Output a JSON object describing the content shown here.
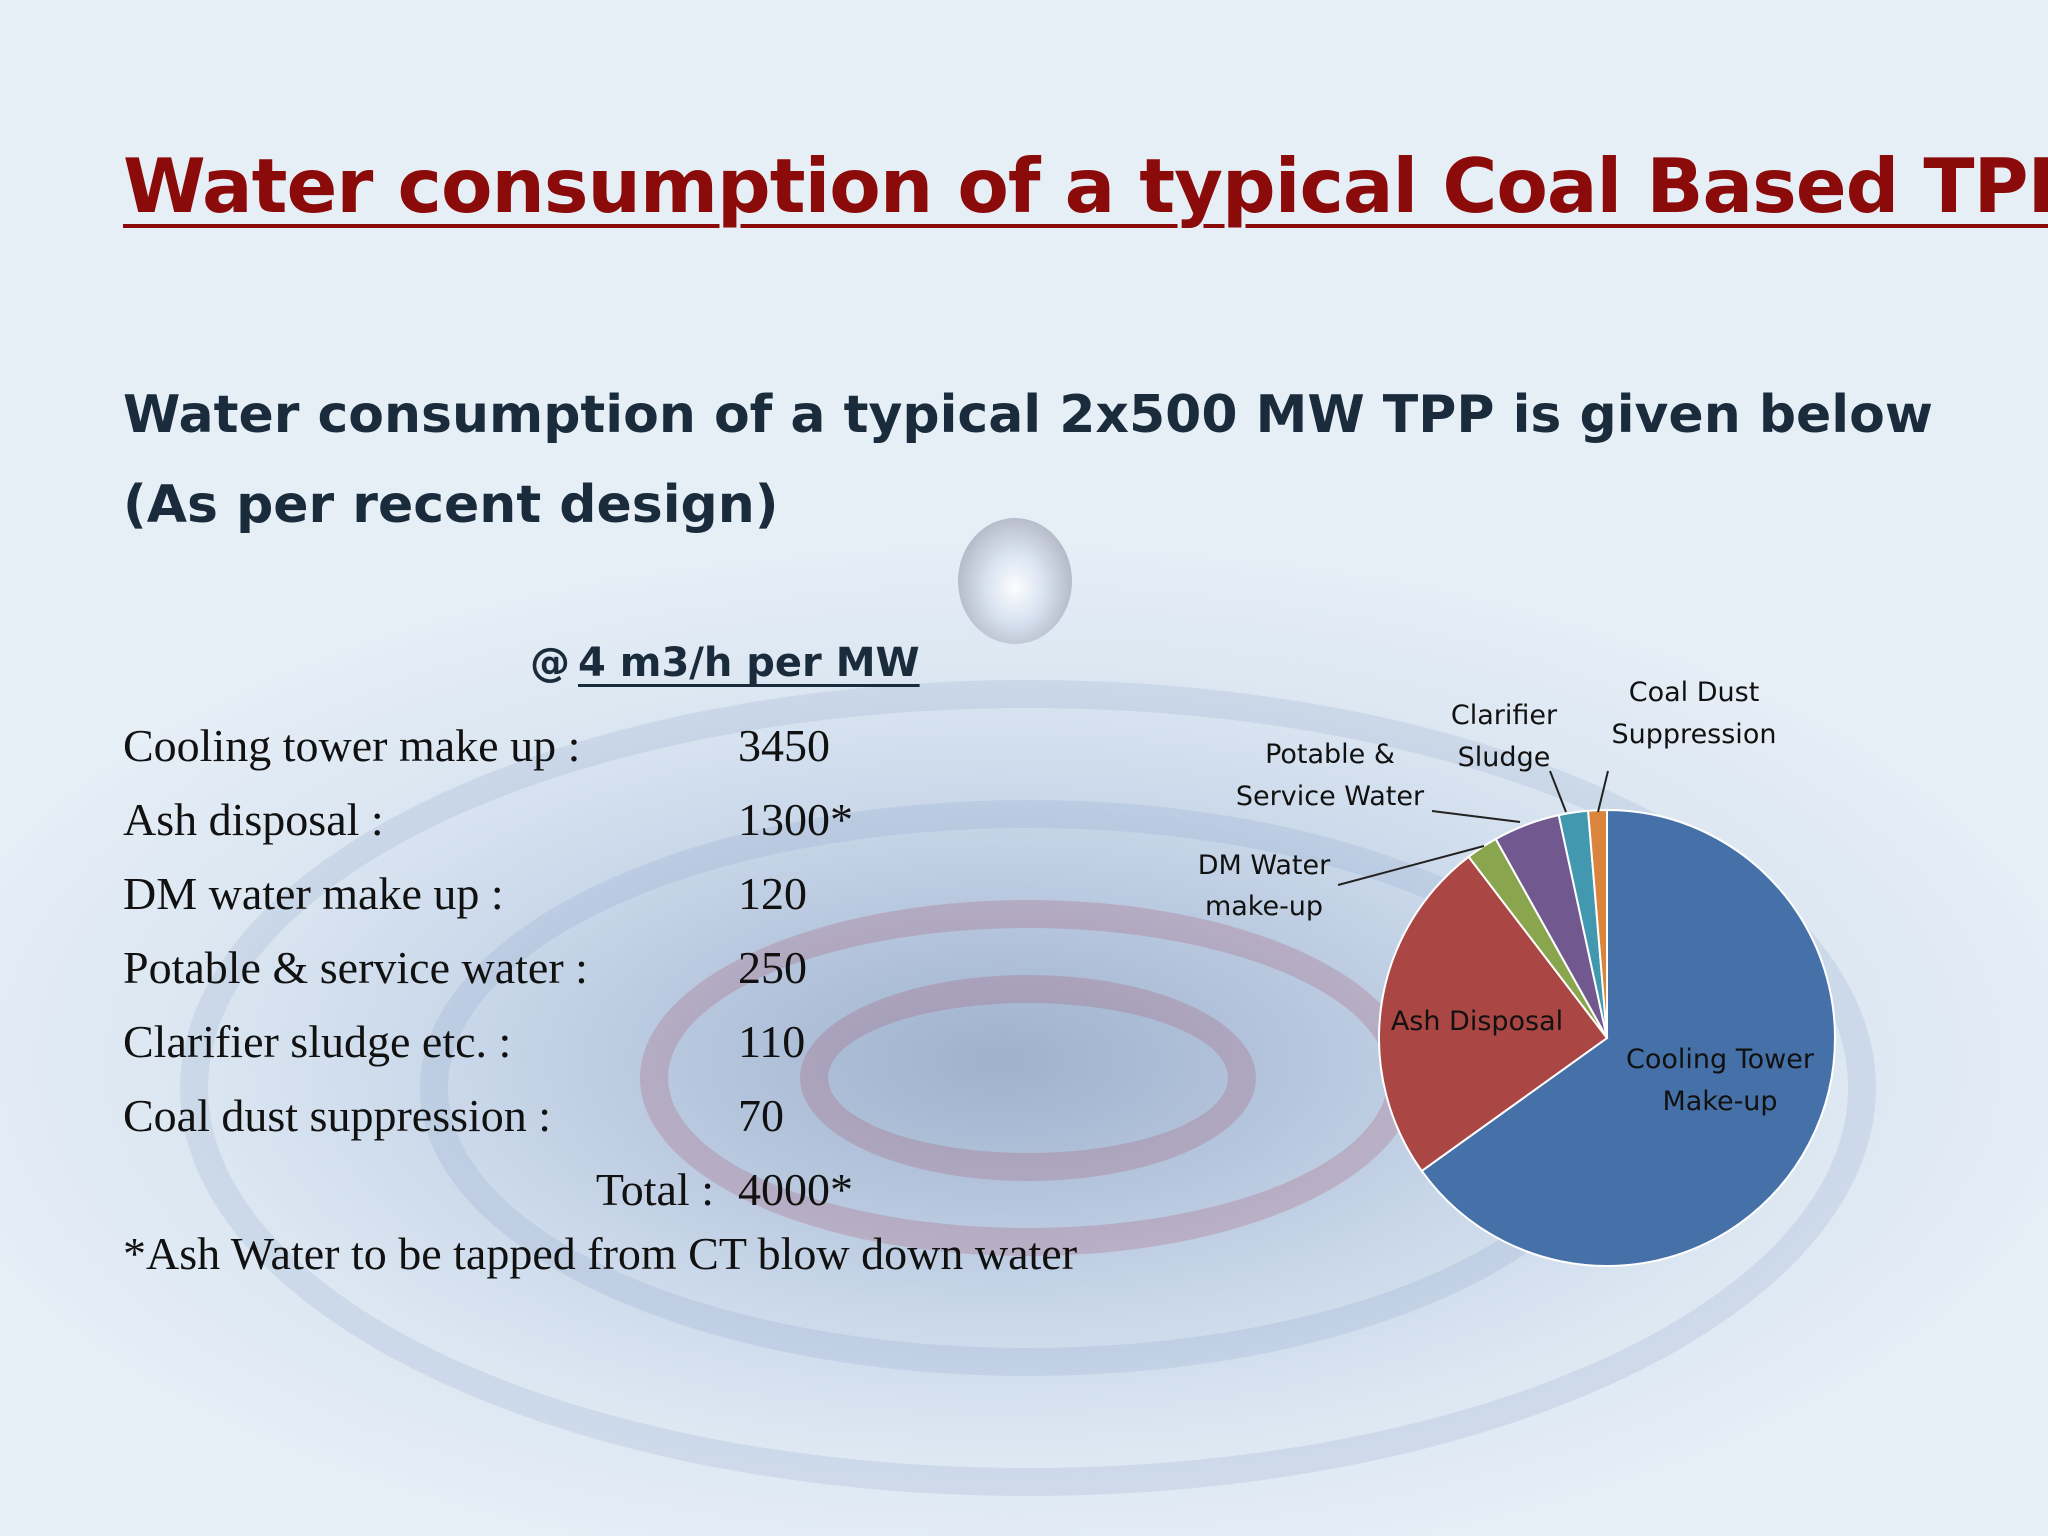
{
  "slide": {
    "title": "Water consumption of a typical Coal Based TPP",
    "subtitle": "Water consumption of a typical 2x500 MW TPP is given below (As per recent design)"
  },
  "table": {
    "header_prefix": "@",
    "header_value": "4 m3/h per MW",
    "rows": [
      {
        "label": "Cooling tower make up :",
        "value": "3450"
      },
      {
        "label": "Ash disposal :",
        "value": "1300*"
      },
      {
        "label": "DM water make up :",
        "value": "120"
      },
      {
        "label": "Potable & service water :",
        "value": "250"
      },
      {
        "label": "Clarifier sludge etc. :",
        "value": "110"
      },
      {
        "label": "Coal dust suppression :",
        "value": "70"
      }
    ],
    "total_label": "Total :",
    "total_value": "4000*",
    "footnote": "*Ash Water to be tapped from CT blow down water"
  },
  "chart_data": {
    "type": "pie",
    "slices": [
      {
        "label": [
          "Cooling Tower",
          "Make-up"
        ],
        "value": 3450,
        "color": "#4571a8"
      },
      {
        "label": [
          "Ash Disposal"
        ],
        "value": 1300,
        "color": "#aa4644"
      },
      {
        "label": [
          "DM Water",
          "make-up"
        ],
        "value": 120,
        "color": "#89a54e"
      },
      {
        "label": [
          "Potable &",
          "Service Water"
        ],
        "value": 250,
        "color": "#71588f"
      },
      {
        "label": [
          "Clarifier",
          "Sludge"
        ],
        "value": 110,
        "color": "#4298af"
      },
      {
        "label": [
          "Coal Dust",
          "Suppression"
        ],
        "value": 70,
        "color": "#db843d"
      }
    ]
  }
}
